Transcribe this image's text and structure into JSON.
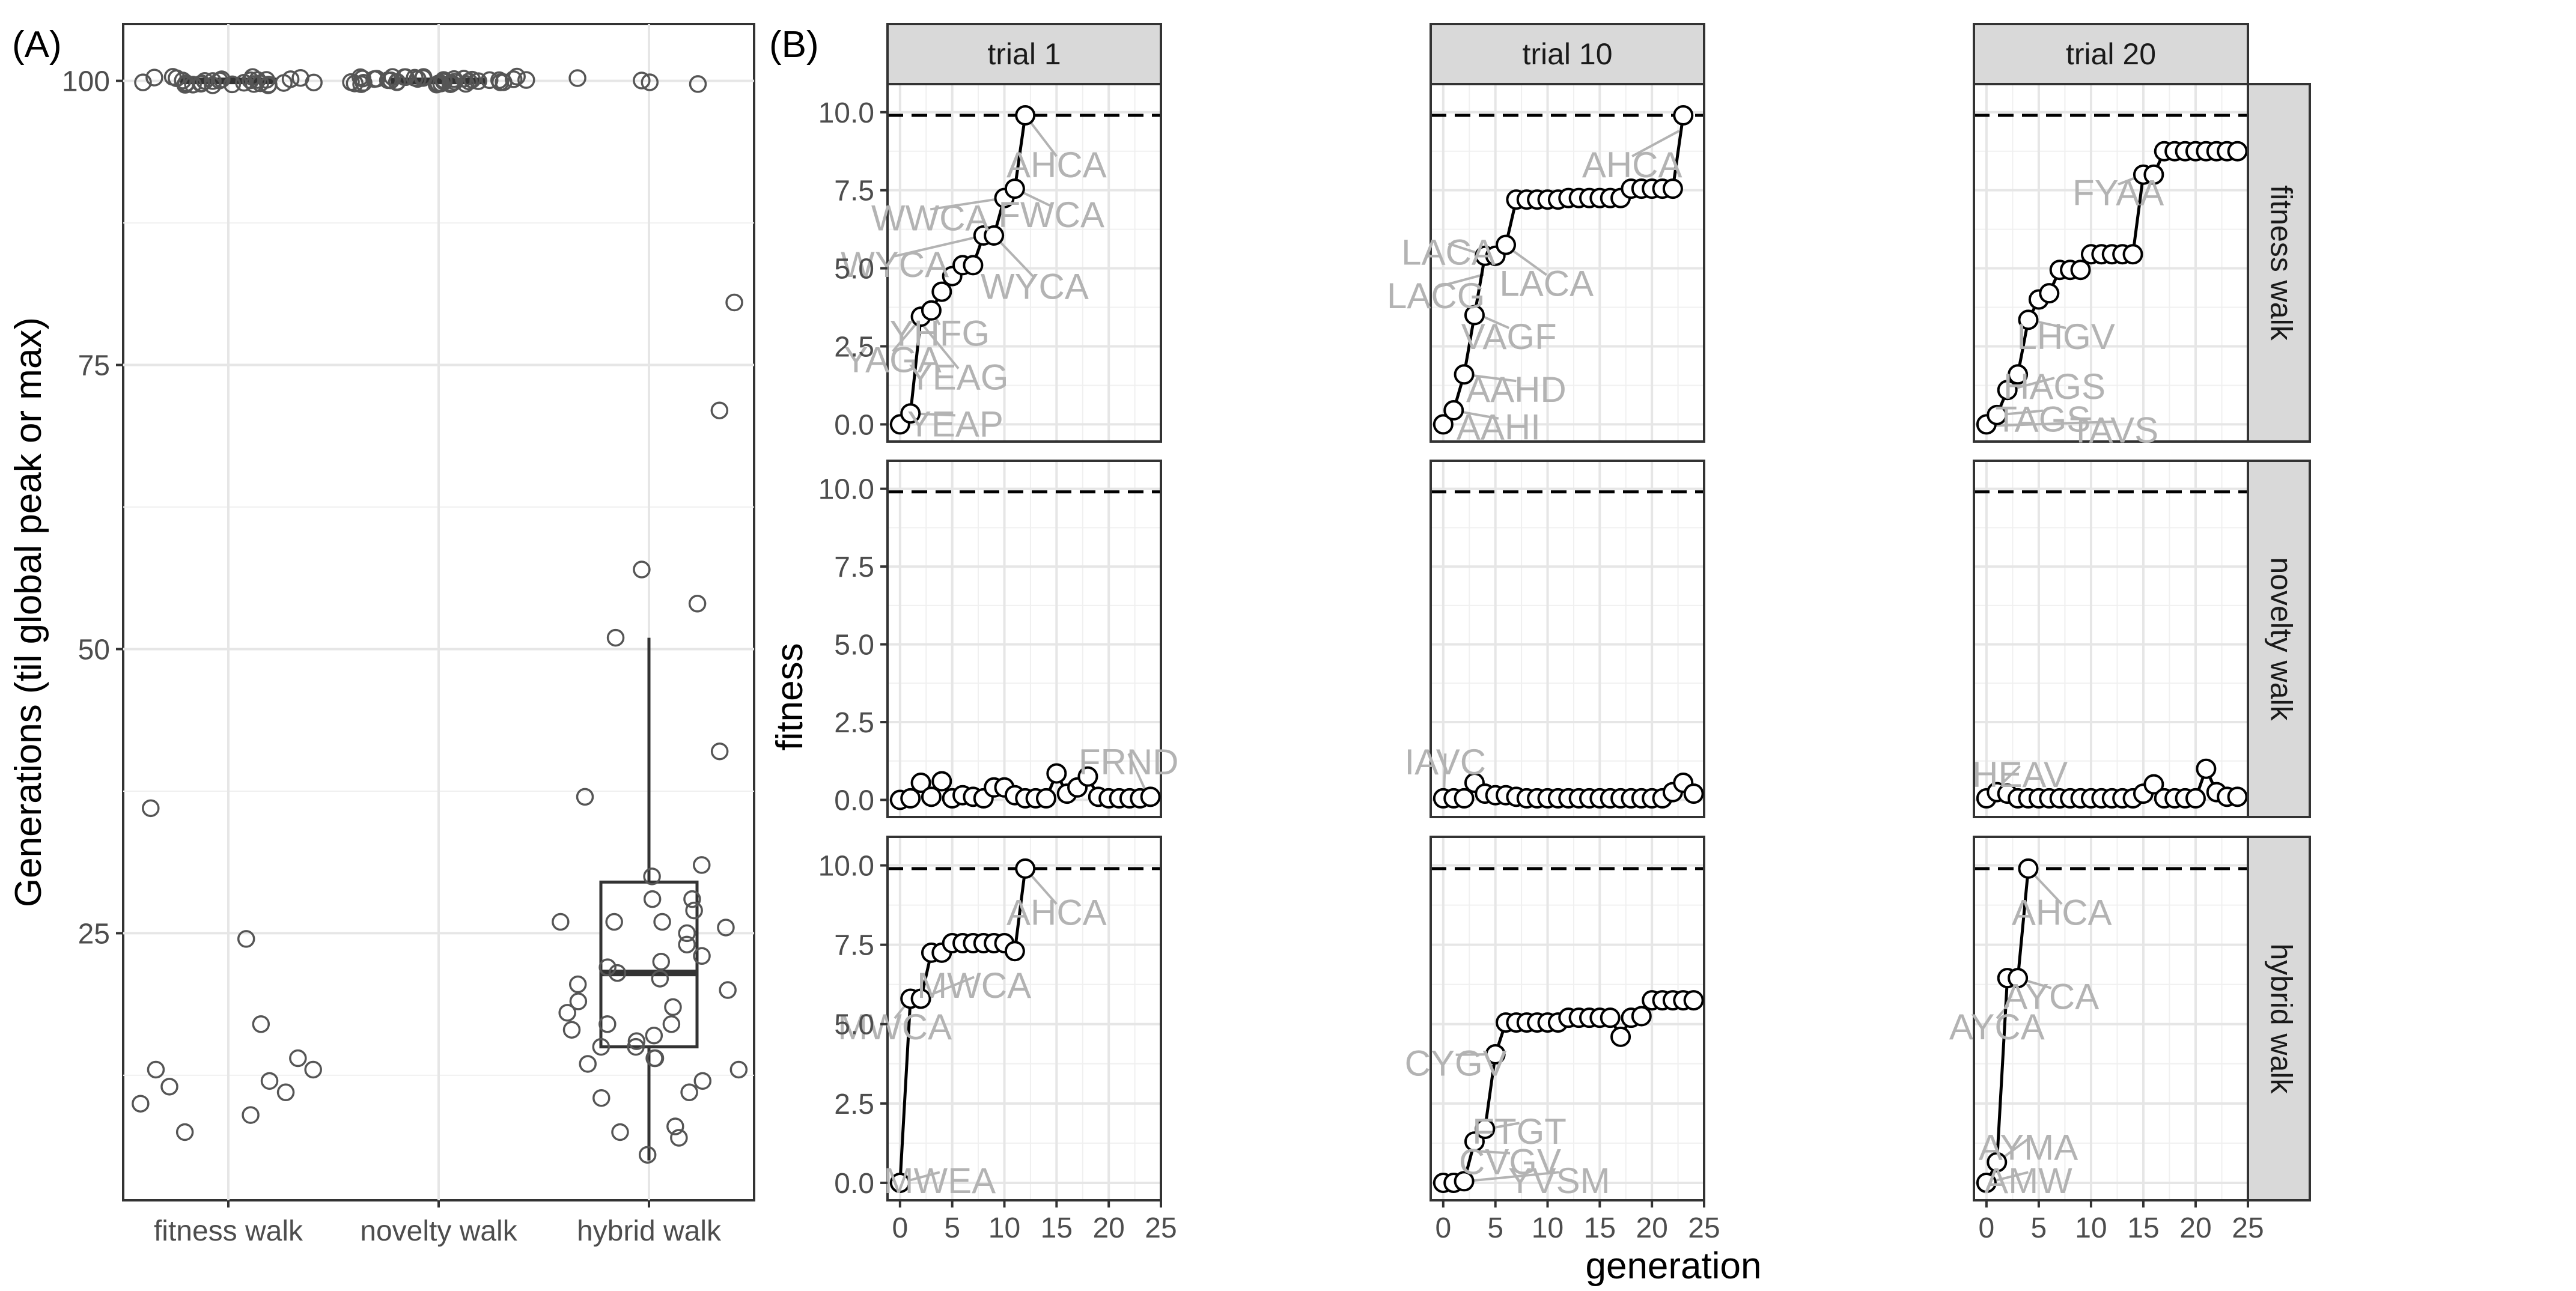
{
  "figure": {
    "panel_a_tag": "(A)",
    "panel_b_tag": "(B)"
  },
  "chart_data": [
    {
      "type": "boxplot",
      "panel": "A",
      "xlabel": "",
      "ylabel": "Generations (til global peak or max)",
      "categories": [
        "fitness walk",
        "novelty walk",
        "hybrid walk"
      ],
      "yticks": [
        25,
        50,
        75,
        100
      ],
      "ylim": [
        1.5,
        105
      ],
      "boxes": [
        {
          "category": "fitness walk",
          "q1": 100,
          "median": 100,
          "q3": 100,
          "whisker_low": 100,
          "whisker_high": 100
        },
        {
          "category": "novelty walk",
          "q1": 100,
          "median": 100,
          "q3": 100,
          "whisker_low": 100,
          "whisker_high": 100
        },
        {
          "category": "hybrid walk",
          "q1": 15,
          "median": 21.5,
          "q3": 29.5,
          "whisker_low": 5,
          "whisker_high": 51
        }
      ],
      "points": [
        {
          "category": "fitness walk",
          "values": [
            100,
            100,
            100,
            100,
            100,
            100,
            100,
            100,
            100,
            100,
            100,
            100,
            100,
            100,
            100,
            100,
            100,
            100,
            100,
            100,
            100,
            100,
            100,
            100,
            100,
            100,
            100,
            100,
            100,
            100,
            36,
            24.5,
            17,
            14,
            13,
            13,
            12,
            11.5,
            11,
            10,
            9,
            7.5
          ]
        },
        {
          "category": "novelty walk",
          "values": [
            100,
            100,
            100,
            100,
            100,
            100,
            100,
            100,
            100,
            100,
            100,
            100,
            100,
            100,
            100,
            100,
            100,
            100,
            100,
            100,
            100,
            100,
            100,
            100,
            100,
            100,
            100,
            100,
            100,
            100,
            100,
            100,
            100,
            100,
            100,
            100,
            100,
            100,
            100,
            100
          ]
        },
        {
          "category": "hybrid walk",
          "values": [
            100,
            100,
            100,
            100,
            80.5,
            71,
            57,
            54,
            51,
            41,
            37,
            31,
            30,
            28,
            28,
            27,
            26,
            26,
            26,
            25.5,
            25,
            24,
            23,
            22.5,
            22,
            21.5,
            21,
            20.5,
            20,
            19,
            18.5,
            18,
            17,
            17,
            16.5,
            16,
            15.5,
            15,
            15,
            14,
            14,
            13.5,
            13,
            12,
            11,
            10.5,
            8,
            7.5,
            7,
            5.5
          ]
        }
      ]
    },
    {
      "type": "line",
      "panel": "B",
      "xlabel": "generation",
      "ylabel": "fitness",
      "xlim": [
        -1.2,
        25
      ],
      "ylim": [
        -0.55,
        10.9
      ],
      "xticks": [
        0,
        5,
        10,
        15,
        20,
        25
      ],
      "yticks": [
        0.0,
        2.5,
        5.0,
        7.5,
        10.0
      ],
      "ytick_labels": [
        "0.0",
        "2.5",
        "5.0",
        "7.5",
        "10.0"
      ],
      "reference_line": 9.9,
      "columns": [
        "trial 1",
        "trial 10",
        "trial 20"
      ],
      "rows": [
        "fitness walk",
        "novelty walk",
        "hybrid walk"
      ],
      "facets": [
        {
          "row": 0,
          "col": 0,
          "x": [
            0,
            1,
            2,
            3,
            4,
            5,
            6,
            7,
            8,
            9,
            10,
            11,
            12
          ],
          "y": [
            0,
            0.35,
            3.45,
            3.65,
            4.25,
            4.75,
            5.1,
            5.1,
            6.05,
            6.05,
            7.25,
            7.55,
            9.9
          ],
          "labels": [
            {
              "text": "YEAP",
              "pt": [
                1,
                0.35
              ],
              "at": [
                5.3,
                0
              ]
            },
            {
              "text": "YEAG",
              "pt": [
                1.9,
                3.3
              ],
              "at": [
                5.6,
                1.5
              ]
            },
            {
              "text": "YAGA",
              "pt": [
                2,
                3.4
              ],
              "at": [
                -0.7,
                2.05
              ]
            },
            {
              "text": "YHFG",
              "pt": [
                3,
                3.65
              ],
              "at": [
                3.8,
                2.9
              ]
            },
            {
              "text": "WYCA",
              "pt": [
                8,
                6.05
              ],
              "at": [
                -0.5,
                5.1
              ]
            },
            {
              "text": "WYCA",
              "pt": [
                9,
                6.05
              ],
              "at": [
                12.9,
                4.4
              ]
            },
            {
              "text": "WWCA",
              "pt": [
                10,
                7.25
              ],
              "at": [
                2.9,
                6.6
              ]
            },
            {
              "text": "FWCA",
              "pt": [
                11,
                7.55
              ],
              "at": [
                14.5,
                6.7
              ]
            },
            {
              "text": "AHCA",
              "pt": [
                12,
                9.9
              ],
              "at": [
                15,
                8.3
              ]
            }
          ]
        },
        {
          "row": 0,
          "col": 1,
          "x": [
            0,
            1,
            2,
            3,
            4,
            5,
            6,
            7,
            8,
            9,
            10,
            11,
            12,
            13,
            14,
            15,
            16,
            17,
            18,
            19,
            20,
            21,
            22,
            23
          ],
          "y": [
            0,
            0.45,
            1.6,
            3.5,
            5.4,
            5.4,
            5.75,
            7.2,
            7.2,
            7.2,
            7.2,
            7.2,
            7.25,
            7.25,
            7.25,
            7.25,
            7.25,
            7.25,
            7.55,
            7.55,
            7.55,
            7.55,
            7.55,
            9.9
          ],
          "labels": [
            {
              "text": "AAHI",
              "pt": [
                0.9,
                0.45
              ],
              "at": [
                5.3,
                -0.1
              ]
            },
            {
              "text": "AAHD",
              "pt": [
                2,
                1.6
              ],
              "at": [
                7,
                1.1
              ]
            },
            {
              "text": "VAGF",
              "pt": [
                3.5,
                3.5
              ],
              "at": [
                6.3,
                2.8
              ]
            },
            {
              "text": "LACG",
              "pt": [
                3.9,
                4.8
              ],
              "at": [
                -0.7,
                4.1
              ]
            },
            {
              "text": "LACA",
              "pt": [
                4.1,
                5.4
              ],
              "at": [
                0.5,
                5.5
              ]
            },
            {
              "text": "LACA",
              "pt": [
                5.9,
                5.75
              ],
              "at": [
                9.9,
                4.5
              ]
            },
            {
              "text": "AHCA",
              "pt": [
                22.6,
                9.4
              ],
              "at": [
                18.1,
                8.3
              ]
            }
          ]
        },
        {
          "row": 0,
          "col": 2,
          "x": [
            0,
            1,
            2,
            3,
            4,
            5,
            6,
            7,
            8,
            9,
            10,
            11,
            12,
            13,
            14,
            15,
            16,
            17,
            18,
            19,
            20,
            21,
            22,
            23,
            24
          ],
          "y": [
            0,
            0.3,
            1.1,
            1.6,
            3.35,
            4.0,
            4.2,
            4.95,
            4.95,
            4.95,
            5.45,
            5.45,
            5.45,
            5.45,
            5.45,
            8.0,
            8.0,
            8.75,
            8.75,
            8.75,
            8.75,
            8.75,
            8.75,
            8.75,
            8.75
          ],
          "labels": [
            {
              "text": "TAVS",
              "pt": [
                0.1,
                -0.05
              ],
              "at": [
                12.2,
                -0.2
              ]
            },
            {
              "text": "TAGS",
              "pt": [
                1,
                0.3
              ],
              "at": [
                5.4,
                0.15
              ]
            },
            {
              "text": "HAGS",
              "pt": [
                2.1,
                1.1
              ],
              "at": [
                6.5,
                1.2
              ]
            },
            {
              "text": "LHGV",
              "pt": [
                4,
                3.35
              ],
              "at": [
                7.6,
                2.8
              ]
            },
            {
              "text": "FYAA",
              "pt": [
                15,
                8.0
              ],
              "at": [
                12.6,
                7.4
              ]
            }
          ]
        },
        {
          "row": 1,
          "col": 0,
          "x": [
            0,
            1,
            2,
            3,
            4,
            5,
            6,
            7,
            8,
            9,
            10,
            11,
            12,
            13,
            14,
            15,
            16,
            17,
            18,
            19,
            20,
            21,
            22,
            23,
            24
          ],
          "y": [
            0,
            0.05,
            0.55,
            0.1,
            0.6,
            0.05,
            0.15,
            0.1,
            0.05,
            0.4,
            0.4,
            0.15,
            0.05,
            0.05,
            0.05,
            0.85,
            0.2,
            0.4,
            0.75,
            0.1,
            0.05,
            0.05,
            0.05,
            0.05,
            0.1
          ],
          "labels": [
            {
              "text": "FRND",
              "pt": [
                23.8,
                0.1
              ],
              "at": [
                21.9,
                1.2
              ]
            }
          ]
        },
        {
          "row": 1,
          "col": 1,
          "x": [
            0,
            1,
            2,
            3,
            4,
            5,
            6,
            7,
            8,
            9,
            10,
            11,
            12,
            13,
            14,
            15,
            16,
            17,
            18,
            19,
            20,
            21,
            22,
            23,
            24
          ],
          "y": [
            0.05,
            0.05,
            0.05,
            0.55,
            0.2,
            0.15,
            0.15,
            0.1,
            0.05,
            0.05,
            0.05,
            0.05,
            0.05,
            0.05,
            0.05,
            0.05,
            0.05,
            0.05,
            0.05,
            0.05,
            0.05,
            0.05,
            0.25,
            0.55,
            0.2
          ],
          "labels": [
            {
              "text": "IAVC",
              "pt": [
                0.05,
                0.05
              ],
              "at": [
                0.2,
                1.2
              ]
            }
          ]
        },
        {
          "row": 1,
          "col": 2,
          "x": [
            0,
            1,
            2,
            3,
            4,
            5,
            6,
            7,
            8,
            9,
            10,
            11,
            12,
            13,
            14,
            15,
            16,
            17,
            18,
            19,
            20,
            21,
            22,
            23,
            24
          ],
          "y": [
            0.05,
            0.25,
            0.2,
            0.05,
            0.05,
            0.05,
            0.05,
            0.05,
            0.05,
            0.05,
            0.05,
            0.05,
            0.05,
            0.05,
            0.05,
            0.2,
            0.5,
            0.05,
            0.05,
            0.05,
            0.05,
            1.0,
            0.25,
            0.1,
            0.1
          ],
          "labels": [
            {
              "text": "HEAV",
              "pt": [
                0.05,
                0.05
              ],
              "at": [
                3.2,
                0.8
              ]
            }
          ]
        },
        {
          "row": 2,
          "col": 0,
          "x": [
            0,
            1,
            2,
            3,
            4,
            5,
            6,
            7,
            8,
            9,
            10,
            11,
            12
          ],
          "y": [
            0,
            5.8,
            5.8,
            7.25,
            7.25,
            7.55,
            7.55,
            7.55,
            7.55,
            7.55,
            7.55,
            7.3,
            9.9
          ],
          "labels": [
            {
              "text": "MWEA",
              "pt": [
                0,
                0
              ],
              "at": [
                3.8,
                0.05
              ]
            },
            {
              "text": "MWCA",
              "pt": [
                1,
                5.8
              ],
              "at": [
                -0.5,
                4.9
              ]
            },
            {
              "text": "MWCA",
              "pt": [
                2,
                5.8
              ],
              "at": [
                7.1,
                6.2
              ]
            },
            {
              "text": "AHCA",
              "pt": [
                12,
                9.9
              ],
              "at": [
                15,
                8.5
              ]
            }
          ]
        },
        {
          "row": 2,
          "col": 1,
          "x": [
            0,
            1,
            2,
            3,
            4,
            5,
            6,
            7,
            8,
            9,
            10,
            11,
            12,
            13,
            14,
            15,
            16,
            17,
            18,
            19,
            20,
            21,
            22,
            23,
            24
          ],
          "y": [
            0,
            0,
            0.05,
            1.3,
            1.7,
            4.05,
            5.05,
            5.05,
            5.05,
            5.05,
            5.05,
            5.05,
            5.2,
            5.2,
            5.2,
            5.2,
            5.2,
            4.6,
            5.2,
            5.25,
            5.75,
            5.75,
            5.75,
            5.75,
            5.75
          ],
          "labels": [
            {
              "text": "CYGV",
              "pt": [
                4.6,
                4.05
              ],
              "at": [
                1.2,
                3.75
              ]
            },
            {
              "text": "FTGT",
              "pt": [
                4.2,
                1.7
              ],
              "at": [
                7.3,
                1.6
              ]
            },
            {
              "text": "CVGV",
              "pt": [
                3.2,
                1.0
              ],
              "at": [
                6.4,
                0.65
              ]
            },
            {
              "text": "YVSM",
              "pt": [
                2.2,
                0.05
              ],
              "at": [
                11.1,
                0.05
              ]
            }
          ]
        },
        {
          "row": 2,
          "col": 2,
          "x": [
            0,
            1,
            2,
            3,
            4
          ],
          "y": [
            0,
            0.65,
            6.45,
            6.45,
            9.9
          ],
          "labels": [
            {
              "text": "AMW",
              "pt": [
                0,
                0
              ],
              "at": [
                4,
                0.05
              ]
            },
            {
              "text": "AYMA",
              "pt": [
                1,
                0.65
              ],
              "at": [
                4,
                1.1
              ]
            },
            {
              "text": "AYCA",
              "pt": [
                2.1,
                5.6
              ],
              "at": [
                1,
                4.9
              ]
            },
            {
              "text": "AYCA",
              "pt": [
                3,
                6.45
              ],
              "at": [
                6.2,
                5.85
              ]
            },
            {
              "text": "AHCA",
              "pt": [
                4,
                9.9
              ],
              "at": [
                7.2,
                8.5
              ]
            }
          ]
        }
      ]
    }
  ]
}
